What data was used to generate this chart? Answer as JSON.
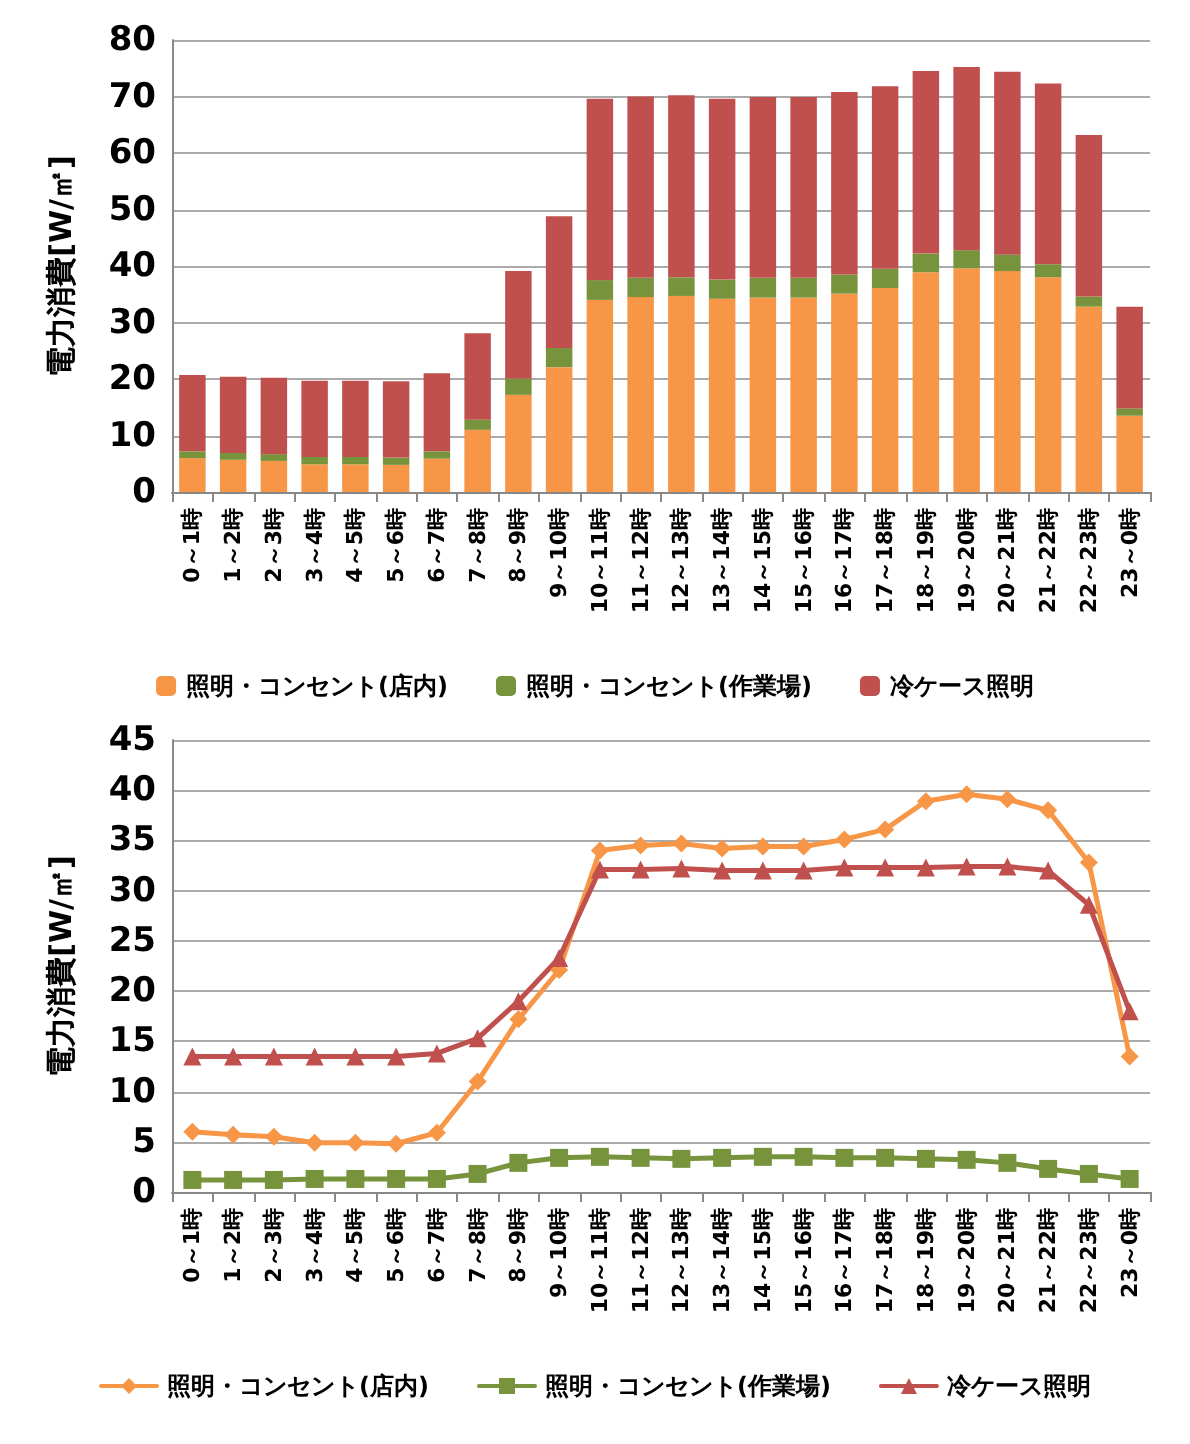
{
  "chart_data": [
    {
      "type": "bar",
      "stacked": true,
      "ylabel": "電力消費[W/㎡]",
      "categories": [
        "0～1時",
        "1～2時",
        "2～3時",
        "3～4時",
        "4～5時",
        "5～6時",
        "6～7時",
        "7～8時",
        "8～9時",
        "9～10時",
        "10～11時",
        "11～12時",
        "12～13時",
        "13～14時",
        "14～15時",
        "15～16時",
        "16～17時",
        "17～18時",
        "18～19時",
        "19～20時",
        "20～21時",
        "21～22時",
        "22～23時",
        "23～0時"
      ],
      "ylim": [
        0,
        80
      ],
      "yticks": [
        0,
        10,
        20,
        30,
        40,
        50,
        60,
        70,
        80
      ],
      "grid": "y",
      "legend": "bottom",
      "series": [
        {
          "name": "照明・コンセント(店内)",
          "color": "#f79646",
          "values": [
            6.0,
            5.7,
            5.5,
            4.9,
            4.9,
            4.8,
            5.9,
            11.0,
            17.2,
            22.1,
            34.0,
            34.5,
            34.7,
            34.2,
            34.4,
            34.4,
            35.1,
            36.1,
            38.9,
            39.6,
            39.1,
            38.0,
            32.8,
            13.5
          ]
        },
        {
          "name": "照明・コンセント(作業場)",
          "color": "#77933c",
          "values": [
            1.2,
            1.2,
            1.2,
            1.3,
            1.3,
            1.3,
            1.3,
            1.8,
            2.9,
            3.4,
            3.5,
            3.4,
            3.3,
            3.4,
            3.5,
            3.5,
            3.4,
            3.4,
            3.3,
            3.2,
            2.9,
            2.3,
            1.8,
            1.3
          ]
        },
        {
          "name": "冷ケース照明",
          "color": "#c0504d",
          "values": [
            13.5,
            13.5,
            13.5,
            13.5,
            13.5,
            13.5,
            13.8,
            15.3,
            19.0,
            23.3,
            32.1,
            32.1,
            32.2,
            32.0,
            32.0,
            32.0,
            32.3,
            32.3,
            32.3,
            32.4,
            32.4,
            32.0,
            28.6,
            18.0
          ]
        }
      ]
    },
    {
      "type": "line",
      "ylabel": "電力消費[W/㎡]",
      "categories": [
        "0～1時",
        "1～2時",
        "2～3時",
        "3～4時",
        "4～5時",
        "5～6時",
        "6～7時",
        "7～8時",
        "8～9時",
        "9～10時",
        "10～11時",
        "11～12時",
        "12～13時",
        "13～14時",
        "14～15時",
        "15～16時",
        "16～17時",
        "17～18時",
        "18～19時",
        "19～20時",
        "20～21時",
        "21～22時",
        "22～23時",
        "23～0時"
      ],
      "ylim": [
        0,
        45
      ],
      "yticks": [
        0,
        5,
        10,
        15,
        20,
        25,
        30,
        35,
        40,
        45
      ],
      "grid": "y",
      "legend": "bottom",
      "line_style": "solid",
      "series": [
        {
          "name": "照明・コンセント(店内)",
          "color": "#f79646",
          "marker": "diamond",
          "values": [
            6.0,
            5.7,
            5.5,
            4.9,
            4.9,
            4.8,
            5.9,
            11.0,
            17.2,
            22.1,
            34.0,
            34.5,
            34.7,
            34.2,
            34.4,
            34.4,
            35.1,
            36.1,
            38.9,
            39.6,
            39.1,
            38.0,
            32.8,
            13.5
          ]
        },
        {
          "name": "照明・コンセント(作業場)",
          "color": "#77933c",
          "marker": "square",
          "values": [
            1.2,
            1.2,
            1.2,
            1.3,
            1.3,
            1.3,
            1.3,
            1.8,
            2.9,
            3.4,
            3.5,
            3.4,
            3.3,
            3.4,
            3.5,
            3.5,
            3.4,
            3.4,
            3.3,
            3.2,
            2.9,
            2.3,
            1.8,
            1.3
          ]
        },
        {
          "name": "冷ケース照明",
          "color": "#c0504d",
          "marker": "triangle",
          "values": [
            13.5,
            13.5,
            13.5,
            13.5,
            13.5,
            13.5,
            13.8,
            15.3,
            19.0,
            23.3,
            32.1,
            32.1,
            32.2,
            32.0,
            32.0,
            32.0,
            32.3,
            32.3,
            32.3,
            32.4,
            32.4,
            32.0,
            28.6,
            18.0
          ]
        }
      ]
    }
  ]
}
